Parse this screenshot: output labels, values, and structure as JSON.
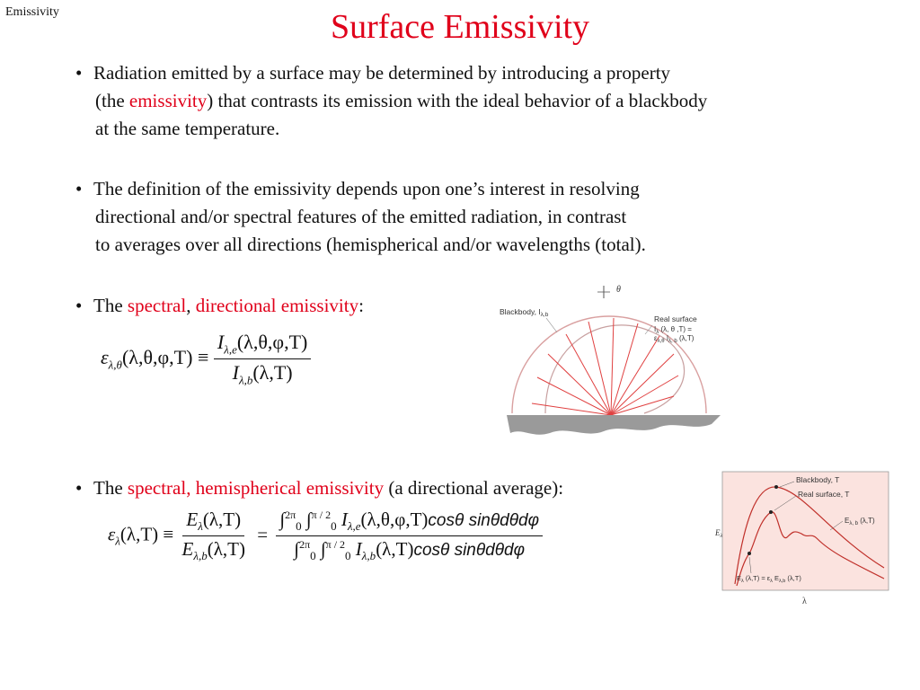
{
  "header": {
    "corner_label": "Emissivity",
    "title": "Surface Emissivity"
  },
  "bullet1": {
    "line1": "Radiation emitted by a surface may be determined by introducing a property",
    "line2_pre": "(the ",
    "line2_red": "emissivity",
    "line2_post": ") that contrasts its emission with the ideal behavior of a blackbody",
    "line3": "at the same temperature."
  },
  "bullet2": {
    "line1": "The definition of the emissivity depends upon one’s interest in resolving",
    "line2": "directional and/or spectral features of the emitted radiation, in contrast",
    "line3": "to averages over all directions (hemispherical and/or wavelengths (total)."
  },
  "bullet3": {
    "pre": "The ",
    "red1": "spectral",
    "mid": ", ",
    "red2": "directional emissivity",
    "post": ":"
  },
  "bullet4": {
    "pre": "The ",
    "red": "spectral, hemispherical emissivity",
    "post": " (a directional average):"
  },
  "eq1": {
    "lhs": "ε",
    "lhs_sub": "λ,θ",
    "lhs_args": "(λ,θ,φ,T) ≡",
    "num": "I",
    "num_sub": "λ,e",
    "num_args": "(λ,θ,φ,T)",
    "den": "I",
    "den_sub": "λ,b",
    "den_args": "(λ,T)"
  },
  "eq2": {
    "lhs": "ε",
    "lhs_sub": "λ",
    "lhs_args": "(λ,T) ≡",
    "f1_num": "E",
    "f1_num_sub": "λ",
    "f1_num_args": "(λ,T)",
    "f1_den": "E",
    "f1_den_sub": "λ,b",
    "f1_den_args": "(λ,T)",
    "equals": "=",
    "int_outer": "∫",
    "int_outer_upper": "2π",
    "int_outer_lower": "0",
    "int_inner": "∫",
    "int_inner_upper": "π / 2",
    "int_inner_lower": "0",
    "f2_num_I": "I",
    "f2_num_sub": "λ,e",
    "f2_num_args": "(λ,θ,φ,T)",
    "f2_den_I": "I",
    "f2_den_sub": "λ,b",
    "f2_den_args": "(λ,T)",
    "trig": "cosθ sinθdθdφ"
  },
  "figure1": {
    "theta": "θ",
    "blackbody_label": "Blackbody, I",
    "blackbody_sub": "λ,b",
    "real_title": "Real surface",
    "real_line1": "I",
    "real_line1_rest": " (λ, θ ,T) =",
    "real_line2": "ε",
    "real_line2_rest": " I",
    "real_line2_tail": " (λ,T)",
    "sub_lambda": "λ",
    "sub_lambda_theta": "λ,θ",
    "sub_lambda_b": "λ, b",
    "colors": {
      "black_curve": "#d9a0a0",
      "rays": "#e04040",
      "ground": "#9a9a9a"
    }
  },
  "figure2": {
    "blackbody_label": "Blackbody, T",
    "real_label": "Real surface, T",
    "curve_label": "E",
    "curve_label_sub": "λ, b",
    "curve_label_args": " (λ,T)",
    "bottom_eq": "E",
    "bottom_eq_sub": "λ",
    "bottom_eq_rest": " (λ,T) = ε",
    "bottom_eq_sub2": "λ",
    "bottom_eq_rest2": " E",
    "bottom_eq_sub3": "λ,b",
    "bottom_eq_rest3": " (λ,T)",
    "y_axis": "E",
    "y_axis_sub": "λ",
    "x_axis": "λ",
    "colors": {
      "background": "#fbe3df",
      "curve": "#c0302a"
    }
  }
}
